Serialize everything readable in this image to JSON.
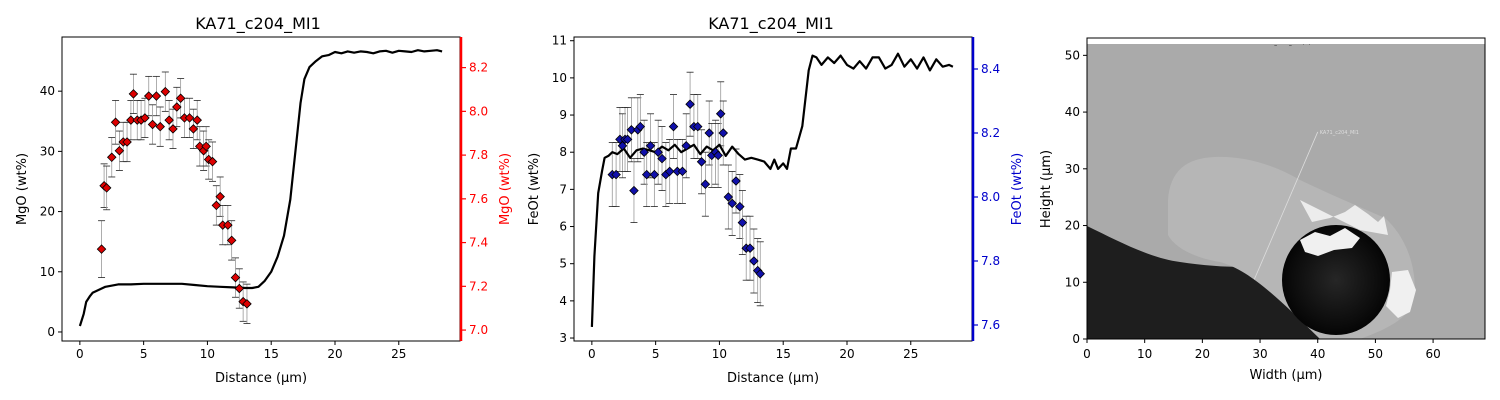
{
  "chart_data": [
    {
      "type": "line",
      "title": "KA71_c204_MI1",
      "xlabel": "Distance (µm)",
      "ylabel": "MgO (wt%)",
      "ylabel_right": "MgO (wt%)",
      "xlim": [
        -1.4,
        29.8
      ],
      "ylim": [
        -1.5,
        49
      ],
      "ylim_right": [
        6.95,
        8.34
      ],
      "xticks": [
        0,
        5,
        10,
        15,
        20,
        25
      ],
      "yticks": [
        0,
        10,
        20,
        30,
        40
      ],
      "yticks_right": [
        7.0,
        7.2,
        7.4,
        7.6,
        7.8,
        8.0,
        8.2
      ],
      "right_axis_color": "#ff0000",
      "line_color": "#000000",
      "marker_color": "#dd0000",
      "marker": "diamond",
      "profile": {
        "x": [
          0,
          0.3,
          0.5,
          0.8,
          1,
          1.5,
          2,
          3,
          4,
          5,
          6,
          7,
          8,
          9,
          10,
          11,
          12,
          13,
          13.5,
          14,
          14.5,
          15,
          15.5,
          16,
          16.5,
          17,
          17.3,
          17.6,
          18,
          18.5,
          19,
          19.5,
          20,
          20.5,
          21,
          21.5,
          22,
          22.5,
          23,
          23.5,
          24,
          24.5,
          25,
          25.5,
          26,
          26.5,
          27,
          27.5,
          28,
          28.4
        ],
        "y": [
          1.0,
          3.0,
          5.0,
          6.0,
          6.5,
          7.0,
          7.5,
          7.9,
          7.9,
          8.0,
          8.0,
          8.0,
          8.0,
          7.8,
          7.6,
          7.5,
          7.4,
          7.3,
          7.3,
          7.5,
          8.5,
          10.0,
          12.5,
          16.0,
          22.0,
          32.0,
          38.0,
          42.0,
          44.0,
          45.0,
          45.8,
          46.0,
          46.5,
          46.3,
          46.6,
          46.4,
          46.6,
          46.5,
          46.3,
          46.6,
          46.7,
          46.4,
          46.7,
          46.6,
          46.5,
          46.8,
          46.6,
          46.7,
          46.8,
          46.6
        ]
      },
      "points": {
        "x": [
          1.7,
          1.9,
          2.1,
          2.5,
          2.8,
          3.1,
          3.4,
          3.7,
          4.0,
          4.2,
          4.5,
          4.8,
          5.1,
          5.4,
          5.7,
          6.0,
          6.3,
          6.7,
          7.0,
          7.3,
          7.6,
          7.9,
          8.2,
          8.6,
          8.9,
          9.2,
          9.4,
          9.7,
          9.9,
          10.1,
          10.4,
          10.7,
          11.0,
          11.2,
          11.6,
          11.9,
          12.2,
          12.5,
          12.8,
          13.1
        ],
        "y": [
          7.37,
          7.66,
          7.65,
          7.79,
          7.95,
          7.82,
          7.86,
          7.86,
          7.96,
          8.08,
          7.96,
          7.96,
          7.97,
          8.07,
          7.94,
          8.07,
          7.93,
          8.09,
          7.96,
          7.92,
          8.02,
          8.06,
          7.97,
          7.97,
          7.92,
          7.96,
          7.84,
          7.82,
          7.84,
          7.78,
          7.77,
          7.57,
          7.61,
          7.48,
          7.48,
          7.41,
          7.24,
          7.19,
          7.13,
          7.12
        ],
        "err": [
          0.13,
          0.1,
          0.1,
          0.09,
          0.1,
          0.09,
          0.09,
          0.09,
          0.09,
          0.09,
          0.09,
          0.09,
          0.09,
          0.09,
          0.09,
          0.09,
          0.09,
          0.09,
          0.09,
          0.09,
          0.09,
          0.09,
          0.09,
          0.09,
          0.09,
          0.09,
          0.09,
          0.09,
          0.09,
          0.09,
          0.09,
          0.09,
          0.09,
          0.09,
          0.09,
          0.09,
          0.09,
          0.09,
          0.09,
          0.09
        ]
      }
    },
    {
      "type": "line",
      "title": "KA71_c204_MI1",
      "xlabel": "Distance (µm)",
      "ylabel": "FeOt (wt%)",
      "ylabel_right": "FeOt (wt%)",
      "xlim": [
        -1.4,
        29.8
      ],
      "ylim": [
        2.92,
        11.1
      ],
      "ylim_right": [
        7.55,
        8.5
      ],
      "xticks": [
        0,
        5,
        10,
        15,
        20,
        25
      ],
      "yticks": [
        3,
        4,
        5,
        6,
        7,
        8,
        9,
        10,
        11
      ],
      "yticks_right": [
        7.6,
        7.8,
        8.0,
        8.2,
        8.4
      ],
      "right_axis_color": "#0000cc",
      "line_color": "#000000",
      "marker_color": "#1010aa",
      "marker": "diamond",
      "profile": {
        "x": [
          0,
          0.2,
          0.5,
          0.8,
          1,
          1.3,
          1.6,
          2,
          2.5,
          3,
          3.5,
          4,
          4.5,
          5,
          5.5,
          6,
          6.5,
          7,
          7.5,
          8,
          8.5,
          9,
          9.5,
          10,
          10.5,
          11,
          11.5,
          12,
          12.5,
          13,
          13.5,
          14,
          14.3,
          14.6,
          15,
          15.3,
          15.6,
          16,
          16.5,
          17,
          17.3,
          17.6,
          18,
          18.5,
          19,
          19.5,
          20,
          20.5,
          21,
          21.5,
          22,
          22.5,
          23,
          23.5,
          24,
          24.5,
          25,
          25.5,
          26,
          26.5,
          27,
          27.5,
          28,
          28.3
        ],
        "y": [
          3.3,
          5.2,
          6.9,
          7.5,
          7.85,
          7.9,
          8.0,
          7.95,
          8.1,
          7.85,
          8.05,
          8.1,
          8.05,
          8.0,
          8.15,
          8.05,
          8.2,
          8.0,
          8.1,
          8.2,
          7.95,
          8.15,
          8.05,
          8.2,
          7.9,
          8.15,
          7.95,
          7.8,
          7.85,
          7.8,
          7.75,
          7.55,
          7.8,
          7.55,
          7.7,
          7.55,
          8.1,
          8.1,
          8.7,
          10.2,
          10.6,
          10.55,
          10.35,
          10.55,
          10.4,
          10.6,
          10.35,
          10.25,
          10.45,
          10.25,
          10.55,
          10.55,
          10.25,
          10.35,
          10.65,
          10.3,
          10.5,
          10.25,
          10.55,
          10.2,
          10.5,
          10.3,
          10.35,
          10.3
        ]
      },
      "points": {
        "x": [
          1.6,
          1.9,
          2.2,
          2.4,
          2.6,
          2.8,
          3.1,
          3.3,
          3.6,
          3.8,
          4.1,
          4.3,
          4.6,
          4.9,
          5.2,
          5.5,
          5.8,
          6.1,
          6.4,
          6.7,
          7.1,
          7.4,
          7.7,
          8.0,
          8.3,
          8.6,
          8.9,
          9.2,
          9.4,
          9.7,
          9.9,
          10.1,
          10.3,
          10.7,
          11.0,
          11.3,
          11.6,
          11.8,
          12.1,
          12.4,
          12.7,
          13.0,
          13.2
        ],
        "y": [
          8.07,
          8.07,
          8.18,
          8.16,
          8.18,
          8.18,
          8.21,
          8.02,
          8.21,
          8.22,
          8.14,
          8.07,
          8.16,
          8.07,
          8.14,
          8.12,
          8.07,
          8.08,
          8.22,
          8.08,
          8.08,
          8.16,
          8.29,
          8.22,
          8.22,
          8.11,
          8.04,
          8.2,
          8.13,
          8.14,
          8.13,
          8.26,
          8.2,
          8.0,
          7.98,
          8.05,
          7.97,
          7.92,
          7.84,
          7.84,
          7.8,
          7.77,
          7.76
        ],
        "err": [
          0.1,
          0.1,
          0.1,
          0.1,
          0.1,
          0.1,
          0.1,
          0.1,
          0.1,
          0.1,
          0.1,
          0.1,
          0.1,
          0.1,
          0.1,
          0.1,
          0.1,
          0.1,
          0.1,
          0.1,
          0.1,
          0.1,
          0.1,
          0.1,
          0.1,
          0.1,
          0.1,
          0.1,
          0.1,
          0.1,
          0.1,
          0.1,
          0.1,
          0.1,
          0.1,
          0.1,
          0.1,
          0.1,
          0.1,
          0.1,
          0.1,
          0.1,
          0.1
        ]
      }
    },
    {
      "type": "image",
      "title": "",
      "xlabel": "Width (µm)",
      "ylabel": "Height (µm)",
      "xlim": [
        0,
        69
      ],
      "ylim": [
        0,
        52
      ],
      "xticks": [
        0,
        10,
        20,
        30,
        40,
        50,
        60
      ],
      "yticks": [
        0,
        10,
        20,
        30,
        40,
        50
      ],
      "image_caption": "KA71_c204_MI1 (bl)",
      "traverse_label": "KA71_c204_MI1",
      "traverse_from": [
        29,
        10.5
      ],
      "traverse_to": [
        40,
        36.5
      ],
      "background_color": "#aaaaaa",
      "matrix_color": "#1e1e1e",
      "crystal_color": "#b6b6b6",
      "inclusion_color": "#f0f0f0"
    }
  ]
}
